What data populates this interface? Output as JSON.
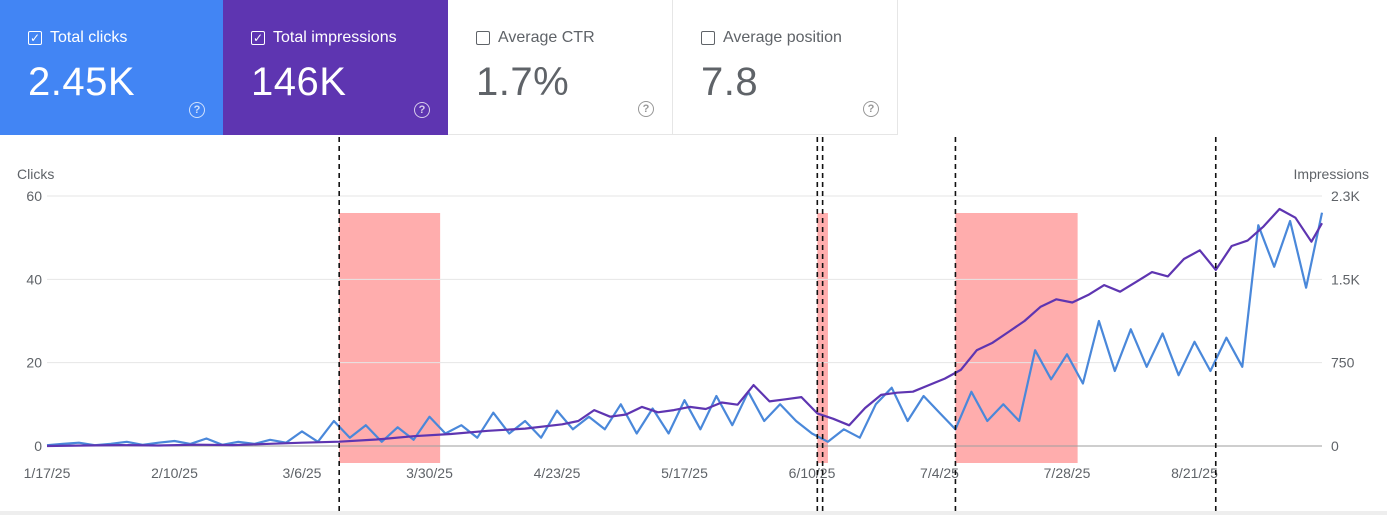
{
  "metrics": [
    {
      "label": "Total clicks",
      "value": "2.45K",
      "checked": true,
      "color": "#4285f4"
    },
    {
      "label": "Total impressions",
      "value": "146K",
      "checked": true,
      "color": "#5e35b1"
    },
    {
      "label": "Average CTR",
      "value": "1.7%",
      "checked": false
    },
    {
      "label": "Average position",
      "value": "7.8",
      "checked": false
    }
  ],
  "chart_data": {
    "type": "line",
    "y_left_label": "Clicks",
    "y_right_label": "Impressions",
    "y_left_ticks": [
      "60",
      "40",
      "20",
      "0"
    ],
    "y_right_ticks": [
      "2.3K",
      "1.5K",
      "750",
      "0"
    ],
    "ylim_left": [
      0,
      60
    ],
    "ylim_right": [
      0,
      2300
    ],
    "x_ticks": [
      "1/17/25",
      "2/10/25",
      "3/6/25",
      "3/30/25",
      "4/23/25",
      "5/17/25",
      "6/10/25",
      "7/4/25",
      "7/28/25",
      "8/21/25"
    ],
    "x_range": [
      "2025-01-17",
      "2025-09-14"
    ],
    "grid": true,
    "series": [
      {
        "name": "Total clicks",
        "axis": "left",
        "color": "#4a88da",
        "points": [
          [
            "2025-01-17",
            0.2
          ],
          [
            "2025-01-20",
            0.5
          ],
          [
            "2025-01-23",
            0.8
          ],
          [
            "2025-01-26",
            0.2
          ],
          [
            "2025-01-29",
            0.5
          ],
          [
            "2025-02-01",
            1.0
          ],
          [
            "2025-02-04",
            0.3
          ],
          [
            "2025-02-07",
            0.8
          ],
          [
            "2025-02-10",
            1.2
          ],
          [
            "2025-02-13",
            0.5
          ],
          [
            "2025-02-16",
            1.8
          ],
          [
            "2025-02-19",
            0.3
          ],
          [
            "2025-02-22",
            1.0
          ],
          [
            "2025-02-25",
            0.5
          ],
          [
            "2025-02-28",
            1.5
          ],
          [
            "2025-03-03",
            0.8
          ],
          [
            "2025-03-06",
            3.5
          ],
          [
            "2025-03-09",
            1.0
          ],
          [
            "2025-03-12",
            6.0
          ],
          [
            "2025-03-15",
            2.0
          ],
          [
            "2025-03-18",
            5.0
          ],
          [
            "2025-03-21",
            1.0
          ],
          [
            "2025-03-24",
            4.5
          ],
          [
            "2025-03-27",
            1.5
          ],
          [
            "2025-03-30",
            7.0
          ],
          [
            "2025-04-02",
            3.0
          ],
          [
            "2025-04-05",
            5.0
          ],
          [
            "2025-04-08",
            2.0
          ],
          [
            "2025-04-11",
            8.0
          ],
          [
            "2025-04-14",
            3.0
          ],
          [
            "2025-04-17",
            6.0
          ],
          [
            "2025-04-20",
            2.0
          ],
          [
            "2025-04-23",
            8.5
          ],
          [
            "2025-04-26",
            4.0
          ],
          [
            "2025-04-29",
            7.0
          ],
          [
            "2025-05-02",
            4.0
          ],
          [
            "2025-05-05",
            10.0
          ],
          [
            "2025-05-08",
            3.0
          ],
          [
            "2025-05-11",
            9.0
          ],
          [
            "2025-05-14",
            3.0
          ],
          [
            "2025-05-17",
            11.0
          ],
          [
            "2025-05-20",
            4.0
          ],
          [
            "2025-05-23",
            12.0
          ],
          [
            "2025-05-26",
            5.0
          ],
          [
            "2025-05-29",
            13.0
          ],
          [
            "2025-06-01",
            6.0
          ],
          [
            "2025-06-04",
            10.0
          ],
          [
            "2025-06-07",
            6.0
          ],
          [
            "2025-06-10",
            3.0
          ],
          [
            "2025-06-13",
            1.0
          ],
          [
            "2025-06-16",
            4.0
          ],
          [
            "2025-06-19",
            2.0
          ],
          [
            "2025-06-22",
            10.0
          ],
          [
            "2025-06-25",
            14.0
          ],
          [
            "2025-06-28",
            6.0
          ],
          [
            "2025-07-01",
            12.0
          ],
          [
            "2025-07-04",
            8.0
          ],
          [
            "2025-07-07",
            4.0
          ],
          [
            "2025-07-10",
            13.0
          ],
          [
            "2025-07-13",
            6.0
          ],
          [
            "2025-07-16",
            10.0
          ],
          [
            "2025-07-19",
            6.0
          ],
          [
            "2025-07-22",
            23.0
          ],
          [
            "2025-07-25",
            16.0
          ],
          [
            "2025-07-28",
            22.0
          ],
          [
            "2025-07-31",
            15.0
          ],
          [
            "2025-08-03",
            30.0
          ],
          [
            "2025-08-06",
            18.0
          ],
          [
            "2025-08-09",
            28.0
          ],
          [
            "2025-08-12",
            19.0
          ],
          [
            "2025-08-15",
            27.0
          ],
          [
            "2025-08-18",
            17.0
          ],
          [
            "2025-08-21",
            25.0
          ],
          [
            "2025-08-24",
            18.0
          ],
          [
            "2025-08-27",
            26.0
          ],
          [
            "2025-08-30",
            19.0
          ],
          [
            "2025-09-02",
            53.0
          ],
          [
            "2025-09-05",
            43.0
          ],
          [
            "2025-09-08",
            54.0
          ],
          [
            "2025-09-11",
            38.0
          ],
          [
            "2025-09-14",
            56.0
          ]
        ]
      },
      {
        "name": "Total impressions",
        "axis": "right",
        "color": "#5e35b1",
        "points": [
          [
            "2025-01-17",
            0
          ],
          [
            "2025-01-24",
            5
          ],
          [
            "2025-01-31",
            8
          ],
          [
            "2025-02-07",
            5
          ],
          [
            "2025-02-14",
            12
          ],
          [
            "2025-02-21",
            8
          ],
          [
            "2025-02-28",
            20
          ],
          [
            "2025-03-06",
            30
          ],
          [
            "2025-03-13",
            40
          ],
          [
            "2025-03-20",
            60
          ],
          [
            "2025-03-27",
            90
          ],
          [
            "2025-04-03",
            110
          ],
          [
            "2025-04-10",
            140
          ],
          [
            "2025-04-17",
            160
          ],
          [
            "2025-04-24",
            200
          ],
          [
            "2025-04-27",
            230
          ],
          [
            "2025-04-30",
            330
          ],
          [
            "2025-05-03",
            270
          ],
          [
            "2025-05-06",
            290
          ],
          [
            "2025-05-09",
            360
          ],
          [
            "2025-05-12",
            310
          ],
          [
            "2025-05-15",
            330
          ],
          [
            "2025-05-18",
            360
          ],
          [
            "2025-05-21",
            340
          ],
          [
            "2025-05-24",
            400
          ],
          [
            "2025-05-27",
            380
          ],
          [
            "2025-05-30",
            560
          ],
          [
            "2025-06-02",
            410
          ],
          [
            "2025-06-05",
            430
          ],
          [
            "2025-06-08",
            450
          ],
          [
            "2025-06-11",
            300
          ],
          [
            "2025-06-14",
            250
          ],
          [
            "2025-06-17",
            190
          ],
          [
            "2025-06-20",
            350
          ],
          [
            "2025-06-23",
            470
          ],
          [
            "2025-06-26",
            490
          ],
          [
            "2025-06-29",
            500
          ],
          [
            "2025-07-02",
            560
          ],
          [
            "2025-07-05",
            620
          ],
          [
            "2025-07-08",
            700
          ],
          [
            "2025-07-11",
            880
          ],
          [
            "2025-07-14",
            950
          ],
          [
            "2025-07-17",
            1050
          ],
          [
            "2025-07-20",
            1150
          ],
          [
            "2025-07-23",
            1280
          ],
          [
            "2025-07-26",
            1350
          ],
          [
            "2025-07-29",
            1320
          ],
          [
            "2025-08-01",
            1390
          ],
          [
            "2025-08-04",
            1480
          ],
          [
            "2025-08-07",
            1420
          ],
          [
            "2025-08-10",
            1510
          ],
          [
            "2025-08-13",
            1600
          ],
          [
            "2025-08-16",
            1560
          ],
          [
            "2025-08-19",
            1720
          ],
          [
            "2025-08-22",
            1800
          ],
          [
            "2025-08-25",
            1620
          ],
          [
            "2025-08-28",
            1840
          ],
          [
            "2025-08-31",
            1890
          ],
          [
            "2025-09-03",
            2020
          ],
          [
            "2025-09-06",
            2180
          ],
          [
            "2025-09-09",
            2100
          ],
          [
            "2025-09-12",
            1880
          ],
          [
            "2025-09-14",
            2050
          ]
        ]
      }
    ],
    "annotations": {
      "dashed_lines": [
        "2025-03-13",
        "2025-06-11",
        "2025-06-12",
        "2025-07-07",
        "2025-08-25"
      ],
      "shaded_ranges": [
        [
          "2025-03-13",
          "2025-04-01"
        ],
        [
          "2025-06-11",
          "2025-06-13"
        ],
        [
          "2025-07-07",
          "2025-07-30"
        ]
      ]
    }
  }
}
